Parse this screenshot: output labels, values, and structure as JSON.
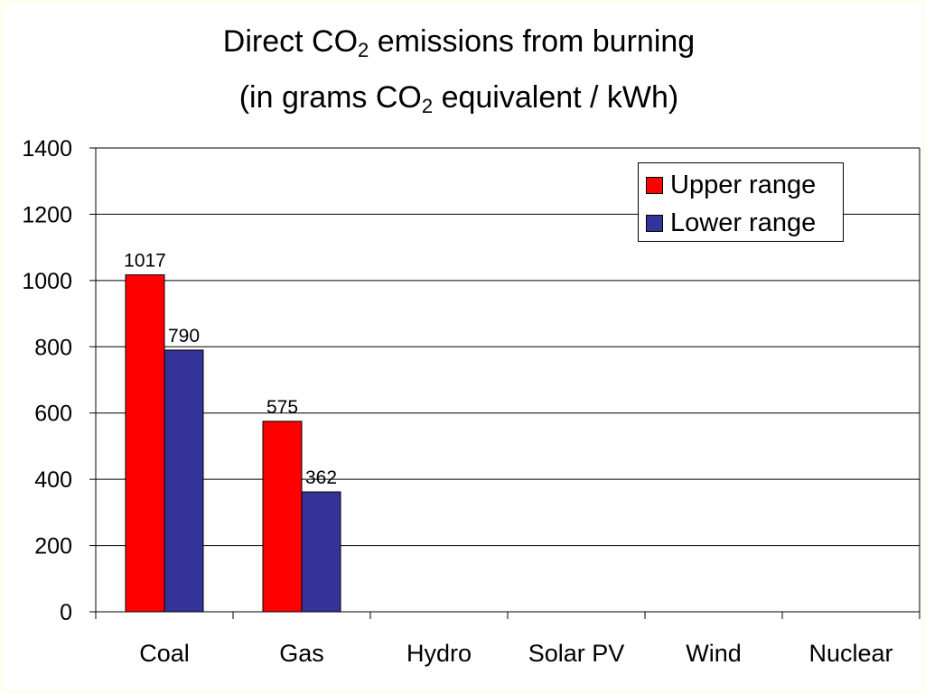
{
  "title": {
    "line1_prefix": "Direct CO",
    "line1_sub": "2",
    "line1_suffix": " emissions from burning",
    "line2_prefix": "(in grams CO",
    "line2_sub": "2",
    "line2_suffix": " equivalent / kWh)"
  },
  "colors": {
    "upper": "#ff0000",
    "lower": "#333399",
    "grid": "#000000",
    "background": "#fdfdf0"
  },
  "chart_data": {
    "type": "bar",
    "title": "Direct CO2 emissions from burning (in grams CO2 equivalent / kWh)",
    "xlabel": "",
    "ylabel": "",
    "categories": [
      "Coal",
      "Gas",
      "Hydro",
      "Solar PV",
      "Wind",
      "Nuclear"
    ],
    "series": [
      {
        "name": "Upper range",
        "values": [
          1017,
          575,
          null,
          null,
          null,
          null
        ],
        "labels": [
          "1017",
          "575",
          "",
          "",
          "",
          ""
        ]
      },
      {
        "name": "Lower range",
        "values": [
          790,
          362,
          null,
          null,
          null,
          null
        ],
        "labels": [
          "790",
          "362",
          "",
          "",
          "",
          ""
        ]
      }
    ],
    "ylim": [
      0,
      1400
    ],
    "yticks": [
      0,
      200,
      400,
      600,
      800,
      1000,
      1200,
      1400
    ],
    "grid": true,
    "legend_position": "top-right"
  }
}
